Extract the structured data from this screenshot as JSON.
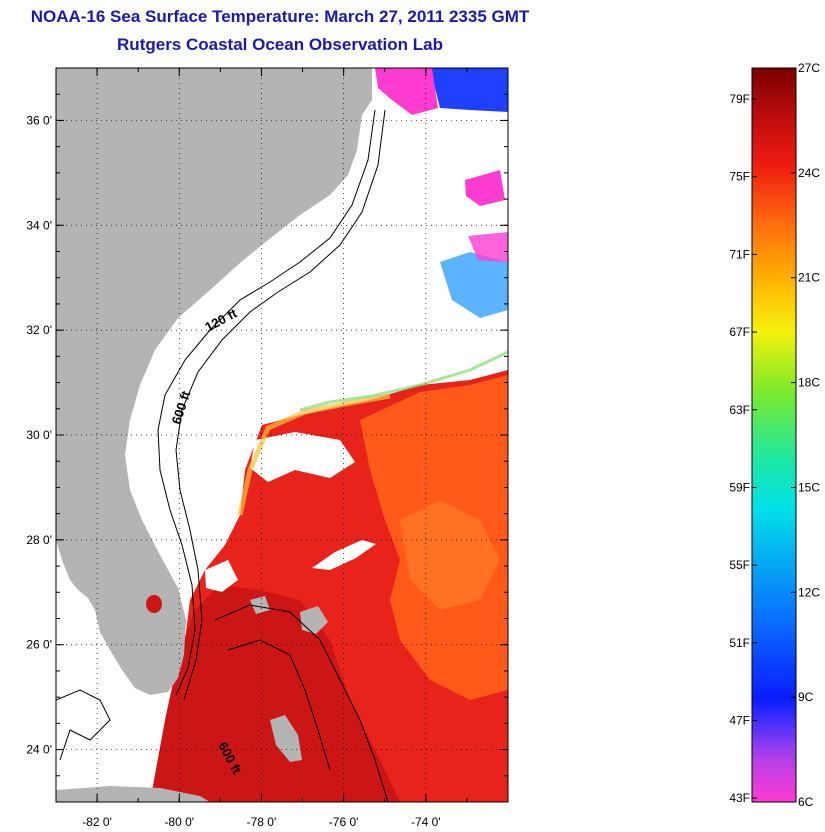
{
  "header": {
    "title": "NOAA-16 Sea Surface Temperature:  March 27, 2011 2335 GMT",
    "subtitle": "Rutgers Coastal Ocean Observation Lab"
  },
  "map": {
    "lon_ticks": [
      "-82 0'",
      "-80 0'",
      "-78 0'",
      "-76 0'",
      "-74 0'"
    ],
    "lat_ticks": [
      "24 0'",
      "26 0'",
      "28 0'",
      "30 0'",
      "32 0'",
      "34 0'",
      "36 0'"
    ],
    "lon_range": [
      -83.0,
      -72.0
    ],
    "lat_range": [
      23.0,
      37.0
    ],
    "contour_labels": [
      "120 ft",
      "600 ft",
      "600 ft"
    ],
    "colors": {
      "land": "#b4b4b4",
      "cloud": "#ffffff",
      "warm_water": "#e8231b",
      "gulf_stream": "#cf1818",
      "cool_water": "#ff6a1a",
      "cold_water": "#1e3cff",
      "coldest": "#ff3cd2"
    }
  },
  "colorbar": {
    "fahrenheit_labels": [
      "43F",
      "47F",
      "51F",
      "55F",
      "59F",
      "63F",
      "67F",
      "71F",
      "75F",
      "79F"
    ],
    "celsius_labels": [
      "6C",
      "9C",
      "12C",
      "15C",
      "18C",
      "21C",
      "24C",
      "27C"
    ],
    "min_c": 6,
    "max_c": 27
  }
}
